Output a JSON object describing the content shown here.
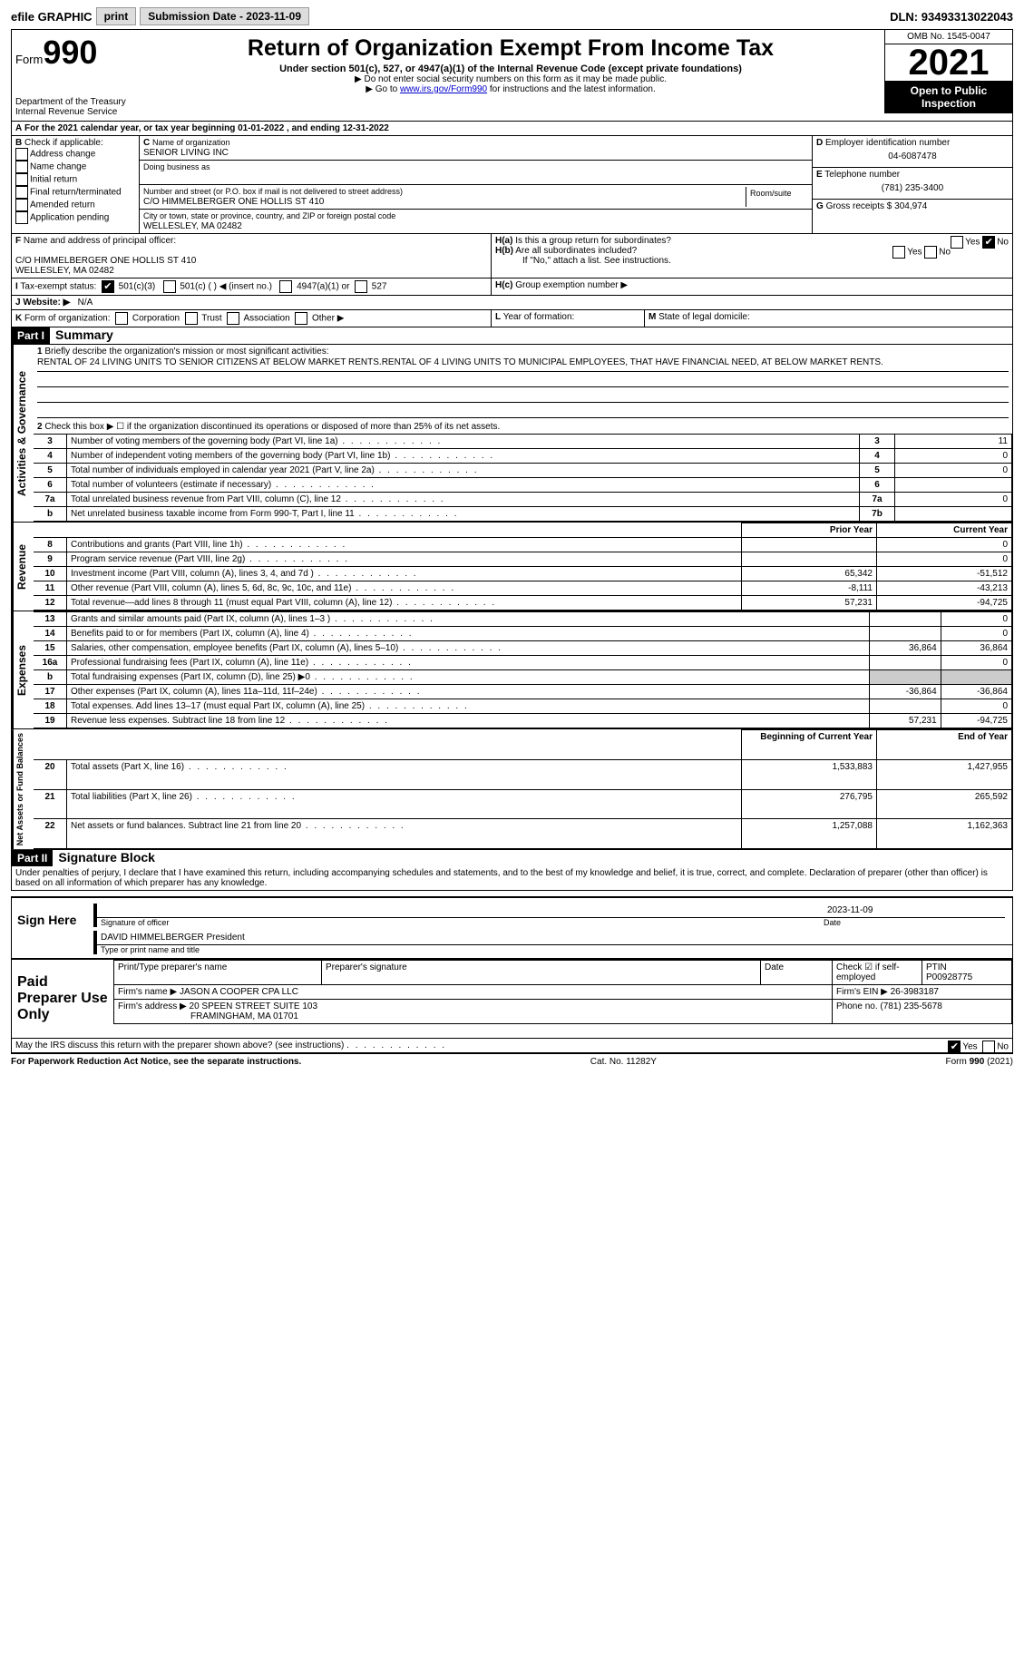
{
  "topbar": {
    "efile": "efile GRAPHIC",
    "print": "print",
    "subdate_label": "Submission Date - ",
    "subdate": "2023-11-09",
    "dln_label": "DLN: ",
    "dln": "93493313022043"
  },
  "header": {
    "form_word": "Form",
    "form_no": "990",
    "dept": "Department of the Treasury",
    "irs": "Internal Revenue Service",
    "title": "Return of Organization Exempt From Income Tax",
    "subtitle": "Under section 501(c), 527, or 4947(a)(1) of the Internal Revenue Code (except private foundations)",
    "note1": "▶ Do not enter social security numbers on this form as it may be made public.",
    "note2_pre": "▶ Go to ",
    "note2_link": "www.irs.gov/Form990",
    "note2_post": " for instructions and the latest information.",
    "omb": "OMB No. 1545-0047",
    "year": "2021",
    "open": "Open to Public Inspection"
  },
  "A": {
    "text": "For the 2021 calendar year, or tax year beginning 01-01-2022    , and ending 12-31-2022"
  },
  "B": {
    "label": "Check if applicable:",
    "items": [
      "Address change",
      "Name change",
      "Initial return",
      "Final return/terminated",
      "Amended return",
      "Application pending"
    ]
  },
  "C": {
    "name_label": "Name of organization",
    "name": "SENIOR LIVING INC",
    "dba_label": "Doing business as",
    "dba": "",
    "street_label": "Number and street (or P.O. box if mail is not delivered to street address)",
    "room_label": "Room/suite",
    "street": "C/O HIMMELBERGER ONE HOLLIS ST 410",
    "city_label": "City or town, state or province, country, and ZIP or foreign postal code",
    "city": "WELLESLEY, MA  02482"
  },
  "D": {
    "label": "Employer identification number",
    "val": "04-6087478"
  },
  "E": {
    "label": "Telephone number",
    "val": "(781) 235-3400"
  },
  "G": {
    "label": "Gross receipts $",
    "val": "304,974"
  },
  "F": {
    "label": "Name and address of principal officer:",
    "val": "C/O HIMMELBERGER ONE HOLLIS ST 410\nWELLESLEY, MA  02482"
  },
  "H": {
    "a": "Is this a group return for subordinates?",
    "b": "Are all subordinates included?",
    "note": "If \"No,\" attach a list. See instructions.",
    "c": "Group exemption number ▶",
    "yes": "Yes",
    "no": "No"
  },
  "I": {
    "label": "Tax-exempt status:",
    "opts": [
      "501(c)(3)",
      "501(c) (  ) ◀ (insert no.)",
      "4947(a)(1) or",
      "527"
    ]
  },
  "J": {
    "label": "Website: ▶",
    "val": "N/A"
  },
  "K": {
    "label": "Form of organization:",
    "opts": [
      "Corporation",
      "Trust",
      "Association",
      "Other ▶"
    ]
  },
  "L": {
    "label": "Year of formation:"
  },
  "M": {
    "label": "State of legal domicile:"
  },
  "part1": {
    "bar": "Part I",
    "title": "Summary",
    "l1_label": "Briefly describe the organization's mission or most significant activities:",
    "l1": "RENTAL OF 24 LIVING UNITS TO SENIOR CITIZENS AT BELOW MARKET RENTS.RENTAL OF 4 LIVING UNITS TO MUNICIPAL EMPLOYEES, THAT HAVE FINANCIAL NEED, AT BELOW MARKET RENTS.",
    "l2": "Check this box ▶ ☐ if the organization discontinued its operations or disposed of more than 25% of its net assets.",
    "rows_ag": [
      {
        "n": "3",
        "t": "Number of voting members of the governing body (Part VI, line 1a)",
        "b": "3",
        "v": "11"
      },
      {
        "n": "4",
        "t": "Number of independent voting members of the governing body (Part VI, line 1b)",
        "b": "4",
        "v": "0"
      },
      {
        "n": "5",
        "t": "Total number of individuals employed in calendar year 2021 (Part V, line 2a)",
        "b": "5",
        "v": "0"
      },
      {
        "n": "6",
        "t": "Total number of volunteers (estimate if necessary)",
        "b": "6",
        "v": ""
      },
      {
        "n": "7a",
        "t": "Total unrelated business revenue from Part VIII, column (C), line 12",
        "b": "7a",
        "v": "0"
      },
      {
        "n": "b",
        "t": "Net unrelated business taxable income from Form 990-T, Part I, line 11",
        "b": "7b",
        "v": ""
      }
    ],
    "hdr_prior": "Prior Year",
    "hdr_curr": "Current Year",
    "rows_rev": [
      {
        "n": "8",
        "t": "Contributions and grants (Part VIII, line 1h)",
        "p": "",
        "c": "0"
      },
      {
        "n": "9",
        "t": "Program service revenue (Part VIII, line 2g)",
        "p": "",
        "c": "0"
      },
      {
        "n": "10",
        "t": "Investment income (Part VIII, column (A), lines 3, 4, and 7d )",
        "p": "65,342",
        "c": "-51,512"
      },
      {
        "n": "11",
        "t": "Other revenue (Part VIII, column (A), lines 5, 6d, 8c, 9c, 10c, and 11e)",
        "p": "-8,111",
        "c": "-43,213"
      },
      {
        "n": "12",
        "t": "Total revenue—add lines 8 through 11 (must equal Part VIII, column (A), line 12)",
        "p": "57,231",
        "c": "-94,725"
      }
    ],
    "rows_exp": [
      {
        "n": "13",
        "t": "Grants and similar amounts paid (Part IX, column (A), lines 1–3 )",
        "p": "",
        "c": "0"
      },
      {
        "n": "14",
        "t": "Benefits paid to or for members (Part IX, column (A), line 4)",
        "p": "",
        "c": "0"
      },
      {
        "n": "15",
        "t": "Salaries, other compensation, employee benefits (Part IX, column (A), lines 5–10)",
        "p": "36,864",
        "c": "36,864"
      },
      {
        "n": "16a",
        "t": "Professional fundraising fees (Part IX, column (A), line 11e)",
        "p": "",
        "c": "0"
      },
      {
        "n": "b",
        "t": "Total fundraising expenses (Part IX, column (D), line 25) ▶0",
        "p": "grey",
        "c": "grey"
      },
      {
        "n": "17",
        "t": "Other expenses (Part IX, column (A), lines 11a–11d, 11f–24e)",
        "p": "-36,864",
        "c": "-36,864"
      },
      {
        "n": "18",
        "t": "Total expenses. Add lines 13–17 (must equal Part IX, column (A), line 25)",
        "p": "",
        "c": "0"
      },
      {
        "n": "19",
        "t": "Revenue less expenses. Subtract line 18 from line 12",
        "p": "57,231",
        "c": "-94,725"
      }
    ],
    "hdr_boy": "Beginning of Current Year",
    "hdr_eoy": "End of Year",
    "rows_na": [
      {
        "n": "20",
        "t": "Total assets (Part X, line 16)",
        "p": "1,533,883",
        "c": "1,427,955"
      },
      {
        "n": "21",
        "t": "Total liabilities (Part X, line 26)",
        "p": "276,795",
        "c": "265,592"
      },
      {
        "n": "22",
        "t": "Net assets or fund balances. Subtract line 21 from line 20",
        "p": "1,257,088",
        "c": "1,162,363"
      }
    ],
    "side_ag": "Activities & Governance",
    "side_rev": "Revenue",
    "side_exp": "Expenses",
    "side_na": "Net Assets or Fund Balances"
  },
  "part2": {
    "bar": "Part II",
    "title": "Signature Block",
    "decl": "Under penalties of perjury, I declare that I have examined this return, including accompanying schedules and statements, and to the best of my knowledge and belief, it is true, correct, and complete. Declaration of preparer (other than officer) is based on all information of which preparer has any knowledge."
  },
  "sign": {
    "label": "Sign Here",
    "sig_label": "Signature of officer",
    "date": "2023-11-09",
    "name": "DAVID HIMMELBERGER  President",
    "name_label": "Type or print name and title",
    "date_label": "Date"
  },
  "paid": {
    "label": "Paid Preparer Use Only",
    "h1": "Print/Type preparer's name",
    "h2": "Preparer's signature",
    "h3": "Date",
    "h4": "Check ☑ if self-employed",
    "h5": "PTIN",
    "ptin": "P00928775",
    "firm_label": "Firm's name  ▶",
    "firm": "JASON A COOPER CPA LLC",
    "ein_label": "Firm's EIN ▶",
    "ein": "26-3983187",
    "addr_label": "Firm's address ▶",
    "addr": "20 SPEEN STREET SUITE 103",
    "addr2": "FRAMINGHAM, MA  01701",
    "phone_label": "Phone no.",
    "phone": "(781) 235-5678"
  },
  "discuss": "May the IRS discuss this return with the preparer shown above? (see instructions)",
  "foot": {
    "l": "For Paperwork Reduction Act Notice, see the separate instructions.",
    "c": "Cat. No. 11282Y",
    "r": "Form 990 (2021)"
  }
}
